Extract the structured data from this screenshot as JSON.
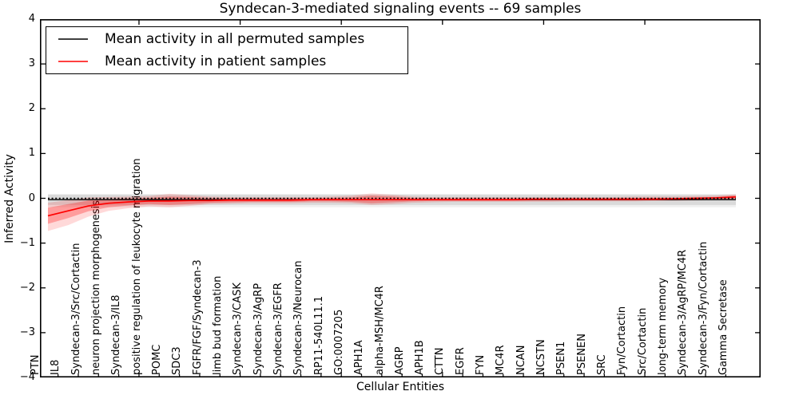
{
  "title": "Syndecan-3-mediated signaling events -- 69 samples",
  "axes": {
    "x_label": "Cellular Entities",
    "y_label": "Inferred Activity",
    "y_tick_labels": [
      "4",
      "3",
      "2",
      "1",
      "0",
      "−1",
      "−2",
      "−3",
      "−4"
    ]
  },
  "legend": {
    "items": [
      {
        "label": "Mean activity in all permuted samples",
        "color": "#000000"
      },
      {
        "label": "Mean activity in patient samples",
        "color": "#ff0000"
      }
    ]
  },
  "colors": {
    "patient_line": "#ff0000",
    "permuted_line": "#000000",
    "background": "#ffffff",
    "spine": "#000000"
  },
  "chart_data": {
    "type": "line",
    "title": "Syndecan-3-mediated signaling events -- 69 samples",
    "xlabel": "Cellular Entities",
    "ylabel": "Inferred Activity",
    "ylim": [
      -4,
      4
    ],
    "yticks": [
      4,
      3,
      2,
      1,
      0,
      -1,
      -2,
      -3,
      -4
    ],
    "grid": false,
    "legend_position": "upper left",
    "zero_line": "dotted",
    "categories": [
      "PTN",
      "IL8",
      "Syndecan-3/Src/Cortactin",
      "neuron projection morphogenesis",
      "Syndecan-3/IL8",
      "positive regulation of leukocyte migration",
      "POMC",
      "SDC3",
      "FGFR/FGF/Syndecan-3",
      "limb bud formation",
      "Syndecan-3/CASK",
      "Syndecan-3/AgRP",
      "Syndecan-3/EGFR",
      "Syndecan-3/Neurocan",
      "RP11-540L11.1",
      "GO:0007205",
      "APH1A",
      "alpha-MSH/MC4R",
      "AGRP",
      "APH1B",
      "CTTN",
      "EGFR",
      "FYN",
      "MC4R",
      "NCAN",
      "NCSTN",
      "PSEN1",
      "PSENEN",
      "SRC",
      "Fyn/Cortactin",
      "Src/Cortactin",
      "long-term memory",
      "Syndecan-3/AgRP/MC4R",
      "Syndecan-3/Fyn/Cortactin",
      "Gamma Secretase"
    ],
    "series": [
      {
        "name": "Mean activity in all permuted samples",
        "color": "#000000",
        "width": 1.4,
        "values": [
          -0.03,
          -0.03,
          -0.03,
          -0.03,
          -0.03,
          -0.03,
          -0.03,
          -0.03,
          -0.03,
          -0.03,
          -0.03,
          -0.03,
          -0.03,
          -0.03,
          -0.03,
          -0.03,
          -0.03,
          -0.03,
          -0.03,
          -0.03,
          -0.03,
          -0.03,
          -0.03,
          -0.03,
          -0.03,
          -0.03,
          -0.03,
          -0.03,
          -0.03,
          -0.03,
          -0.03,
          -0.03,
          -0.03,
          -0.03,
          -0.03
        ]
      },
      {
        "name": "Mean activity in patient samples",
        "color": "#ff0000",
        "width": 1.7,
        "values": [
          -0.39,
          -0.28,
          -0.17,
          -0.11,
          -0.08,
          -0.06,
          -0.06,
          -0.05,
          -0.05,
          -0.04,
          -0.04,
          -0.04,
          -0.04,
          -0.03,
          -0.03,
          -0.03,
          -0.03,
          -0.03,
          -0.03,
          -0.03,
          -0.03,
          -0.03,
          -0.03,
          -0.03,
          -0.02,
          -0.02,
          -0.02,
          -0.02,
          -0.02,
          -0.02,
          -0.02,
          -0.01,
          0.0,
          0.01,
          0.03
        ]
      }
    ],
    "bands": [
      {
        "name": "permuted-range",
        "color": "#000000",
        "opacity": 0.06,
        "upper": [
          0.1,
          0.1,
          0.1,
          0.1,
          0.1,
          0.1,
          0.1,
          0.1,
          0.1,
          0.1,
          0.1,
          0.1,
          0.1,
          0.1,
          0.1,
          0.1,
          0.1,
          0.1,
          0.1,
          0.1,
          0.1,
          0.1,
          0.1,
          0.1,
          0.1,
          0.1,
          0.1,
          0.1,
          0.1,
          0.1,
          0.1,
          0.1,
          0.1,
          0.1,
          0.1
        ],
        "lower": [
          -0.2,
          -0.2,
          -0.2,
          -0.2,
          -0.2,
          -0.2,
          -0.2,
          -0.2,
          -0.2,
          -0.2,
          -0.2,
          -0.2,
          -0.2,
          -0.2,
          -0.2,
          -0.2,
          -0.2,
          -0.2,
          -0.2,
          -0.2,
          -0.2,
          -0.2,
          -0.2,
          -0.2,
          -0.2,
          -0.2,
          -0.2,
          -0.2,
          -0.2,
          -0.2,
          -0.2,
          -0.2,
          -0.2,
          -0.2,
          -0.2
        ]
      },
      {
        "name": "permuted-std",
        "color": "#000000",
        "opacity": 0.09,
        "upper": [
          0.08,
          0.08,
          0.08,
          0.08,
          0.08,
          0.08,
          0.08,
          0.08,
          0.08,
          0.08,
          0.08,
          0.08,
          0.08,
          0.08,
          0.08,
          0.08,
          0.08,
          0.08,
          0.08,
          0.08,
          0.08,
          0.08,
          0.08,
          0.08,
          0.08,
          0.08,
          0.08,
          0.08,
          0.08,
          0.08,
          0.08,
          0.08,
          0.08,
          0.08,
          0.08
        ],
        "lower": [
          -0.15,
          -0.15,
          -0.15,
          -0.15,
          -0.15,
          -0.15,
          -0.15,
          -0.15,
          -0.15,
          -0.15,
          -0.15,
          -0.15,
          -0.15,
          -0.15,
          -0.15,
          -0.15,
          -0.15,
          -0.15,
          -0.15,
          -0.15,
          -0.15,
          -0.15,
          -0.15,
          -0.15,
          -0.15,
          -0.15,
          -0.15,
          -0.15,
          -0.15,
          -0.15,
          -0.15,
          -0.15,
          -0.15,
          -0.15,
          -0.15
        ]
      },
      {
        "name": "patient-range",
        "color": "#ff0000",
        "opacity": 0.15,
        "upper": [
          -0.1,
          -0.04,
          0.02,
          0.03,
          0.04,
          0.05,
          0.1,
          0.07,
          0.04,
          0.03,
          0.03,
          0.03,
          0.03,
          0.03,
          0.04,
          0.06,
          0.11,
          0.08,
          0.04,
          0.03,
          0.03,
          0.03,
          0.03,
          0.03,
          0.03,
          0.03,
          0.03,
          0.03,
          0.03,
          0.04,
          0.04,
          0.04,
          0.05,
          0.06,
          0.09
        ],
        "lower": [
          -0.73,
          -0.6,
          -0.41,
          -0.28,
          -0.22,
          -0.18,
          -0.2,
          -0.17,
          -0.13,
          -0.12,
          -0.11,
          -0.11,
          -0.11,
          -0.1,
          -0.1,
          -0.11,
          -0.15,
          -0.13,
          -0.1,
          -0.09,
          -0.08,
          -0.08,
          -0.08,
          -0.08,
          -0.08,
          -0.08,
          -0.07,
          -0.07,
          -0.07,
          -0.07,
          -0.06,
          -0.06,
          -0.05,
          -0.04,
          -0.02
        ]
      },
      {
        "name": "patient-std",
        "color": "#ff0000",
        "opacity": 0.28,
        "upper": [
          -0.21,
          -0.13,
          -0.05,
          -0.02,
          0.0,
          0.01,
          0.04,
          0.03,
          0.01,
          0.0,
          0.0,
          0.0,
          0.0,
          0.0,
          0.01,
          0.02,
          0.06,
          0.04,
          0.01,
          0.0,
          0.0,
          0.0,
          0.0,
          0.0,
          0.0,
          0.0,
          0.0,
          0.0,
          0.0,
          0.01,
          0.01,
          0.01,
          0.02,
          0.03,
          0.06
        ],
        "lower": [
          -0.57,
          -0.44,
          -0.29,
          -0.2,
          -0.16,
          -0.13,
          -0.15,
          -0.13,
          -0.1,
          -0.09,
          -0.08,
          -0.08,
          -0.08,
          -0.07,
          -0.07,
          -0.08,
          -0.11,
          -0.09,
          -0.07,
          -0.06,
          -0.06,
          -0.06,
          -0.06,
          -0.06,
          -0.05,
          -0.05,
          -0.05,
          -0.05,
          -0.05,
          -0.05,
          -0.04,
          -0.04,
          -0.03,
          -0.02,
          -0.01
        ]
      }
    ]
  }
}
